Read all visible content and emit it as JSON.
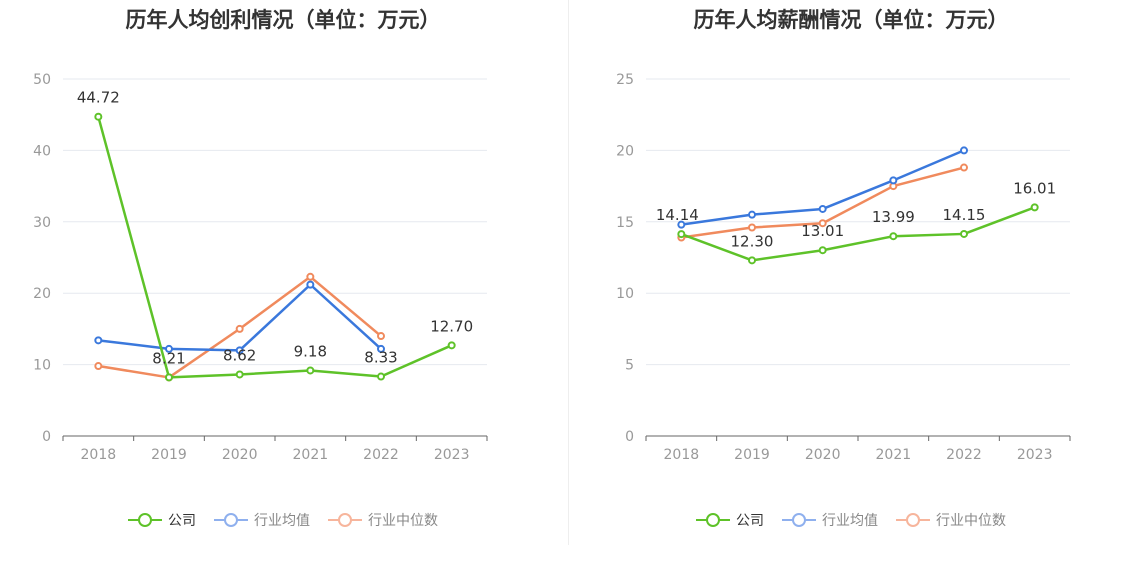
{
  "charts": [
    {
      "title": "历年人均创利情况（单位：万元）",
      "legend": [
        {
          "label": "公司",
          "key": "company"
        },
        {
          "label": "行业均值",
          "key": "industry_avg"
        },
        {
          "label": "行业中位数",
          "key": "industry_median"
        }
      ]
    },
    {
      "title": "历年人均薪酬情况（单位：万元）",
      "legend": [
        {
          "label": "公司",
          "key": "company"
        },
        {
          "label": "行业均值",
          "key": "industry_avg"
        },
        {
          "label": "行业中位数",
          "key": "industry_median"
        }
      ]
    }
  ],
  "colors": {
    "company": "#5ec229",
    "industry_avg": "#3a78dc",
    "industry_median": "#f08a5d",
    "legend_avg_faded": "#8fb0ee",
    "legend_median_faded": "#f7b59c",
    "axis": "#666666",
    "grid": "#e6e9ef",
    "tick_label": "#999999"
  },
  "chart_data": [
    {
      "type": "line",
      "title": "历年人均创利情况（单位：万元）",
      "x": [
        "2018",
        "2019",
        "2020",
        "2021",
        "2022",
        "2023"
      ],
      "ylim": [
        0,
        50
      ],
      "yticks": [
        "0",
        "10",
        "20",
        "30",
        "40",
        "50"
      ],
      "grid": true,
      "legend_position": "bottom",
      "series": [
        {
          "name": "公司",
          "key": "company",
          "values": [
            44.72,
            8.21,
            8.62,
            9.18,
            8.33,
            12.7
          ],
          "labels": [
            "44.72",
            "8.21",
            "8.62",
            "9.18",
            "8.33",
            "12.70"
          ]
        },
        {
          "name": "行业均值",
          "key": "industry_avg",
          "values": [
            13.4,
            12.2,
            12.0,
            21.2,
            12.2,
            null
          ]
        },
        {
          "name": "行业中位数",
          "key": "industry_median",
          "values": [
            9.8,
            8.2,
            15.0,
            22.3,
            14.0,
            null
          ]
        }
      ]
    },
    {
      "type": "line",
      "title": "历年人均薪酬情况（单位：万元）",
      "x": [
        "2018",
        "2019",
        "2020",
        "2021",
        "2022",
        "2023"
      ],
      "ylim": [
        0,
        25
      ],
      "yticks": [
        "0",
        "5",
        "10",
        "15",
        "20",
        "25"
      ],
      "grid": true,
      "legend_position": "bottom",
      "series": [
        {
          "name": "公司",
          "key": "company",
          "values": [
            14.14,
            12.3,
            13.01,
            13.99,
            14.15,
            16.01
          ],
          "labels": [
            "14.14",
            "12.30",
            "13.01",
            "13.99",
            "14.15",
            "16.01"
          ]
        },
        {
          "name": "行业均值",
          "key": "industry_avg",
          "values": [
            14.8,
            15.5,
            15.9,
            17.9,
            20.0,
            null
          ]
        },
        {
          "name": "行业中位数",
          "key": "industry_median",
          "values": [
            13.9,
            14.6,
            14.9,
            17.5,
            18.8,
            null
          ]
        }
      ]
    }
  ]
}
